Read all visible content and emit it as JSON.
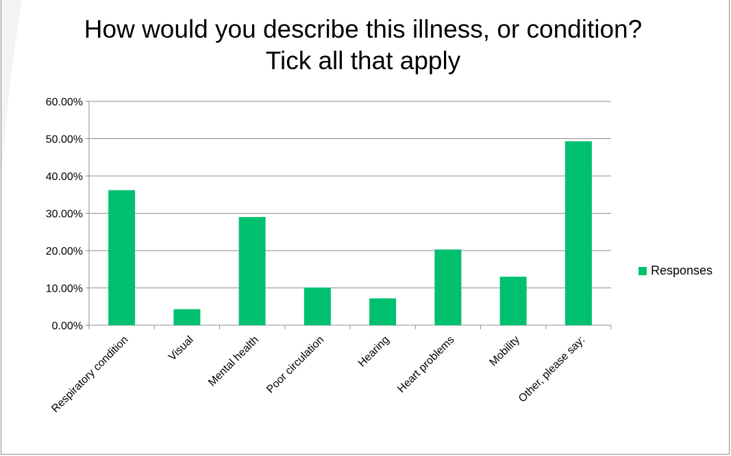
{
  "chart_data": {
    "type": "bar",
    "title": "How would you describe this illness, or condition?Tick all that apply",
    "categories": [
      "Respiratory condition",
      "Visual",
      "Mental health",
      "Poor circulation",
      "Hearing",
      "Heart problems",
      "Mobility",
      "Other, please say:"
    ],
    "series": [
      {
        "name": "Responses",
        "values": [
          0.362,
          0.043,
          0.29,
          0.101,
          0.072,
          0.203,
          0.13,
          0.493
        ]
      }
    ],
    "yticks": [
      "0.00%",
      "10.00%",
      "20.00%",
      "30.00%",
      "40.00%",
      "50.00%",
      "60.00%"
    ],
    "ylim": [
      0,
      0.6
    ],
    "grid": true,
    "legend": "right",
    "bar_color": "#00c070"
  }
}
